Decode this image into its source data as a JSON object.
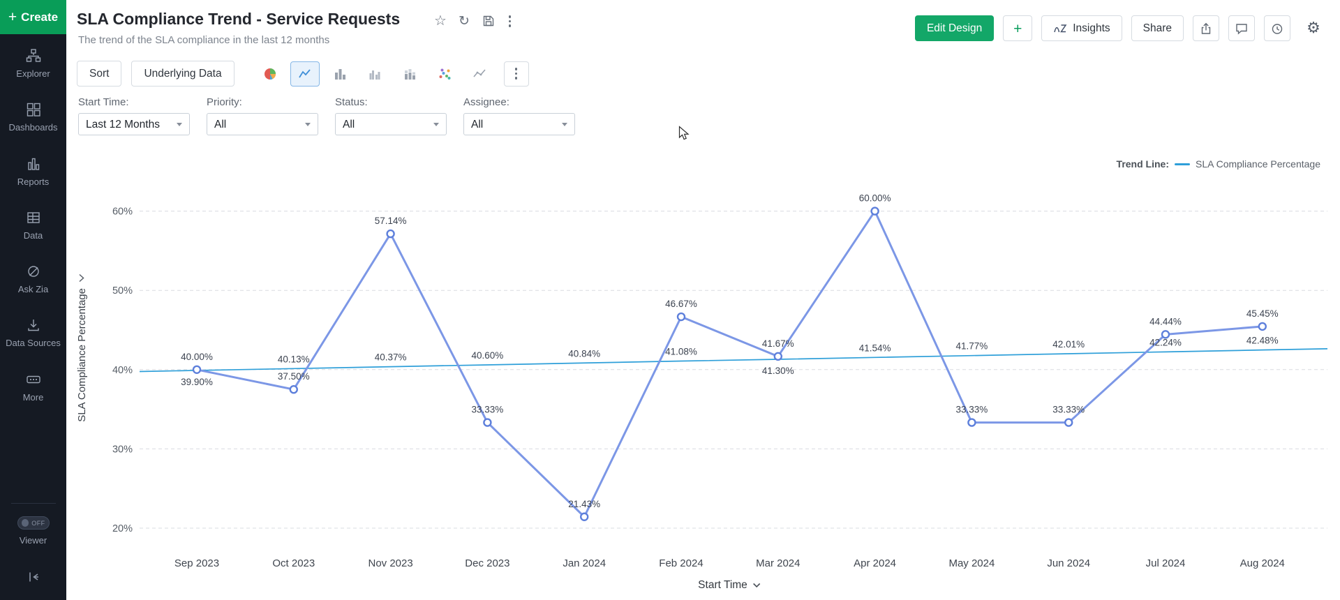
{
  "sidebar": {
    "create": "Create",
    "items": [
      {
        "id": "explorer",
        "label": "Explorer"
      },
      {
        "id": "dashboards",
        "label": "Dashboards"
      },
      {
        "id": "reports",
        "label": "Reports"
      },
      {
        "id": "data",
        "label": "Data"
      },
      {
        "id": "ask-zia",
        "label": "Ask Zia"
      },
      {
        "id": "data-sources",
        "label": "Data Sources"
      },
      {
        "id": "more",
        "label": "More"
      }
    ],
    "viewer_label": "Viewer",
    "viewer_toggle": "OFF"
  },
  "header": {
    "title": "SLA Compliance Trend - Service Requests",
    "subtitle": "The trend of the SLA compliance in the last 12 months",
    "edit_design": "Edit Design",
    "insights": "Insights",
    "share": "Share"
  },
  "toolbar": {
    "sort": "Sort",
    "underlying_data": "Underlying Data"
  },
  "filters": {
    "start_time": {
      "label": "Start Time:",
      "value": "Last 12 Months"
    },
    "priority": {
      "label": "Priority:",
      "value": "All"
    },
    "status": {
      "label": "Status:",
      "value": "All"
    },
    "assignee": {
      "label": "Assignee:",
      "value": "All"
    }
  },
  "legend": {
    "title": "Trend Line:",
    "series": "SLA Compliance Percentage"
  },
  "colors": {
    "accent_green": "#099d58",
    "edit_design_green": "#13a768",
    "main_line": "#7c97e6",
    "trend_line": "#2e9fd9"
  },
  "chart_data": {
    "type": "line",
    "categories": [
      "Sep 2023",
      "Oct 2023",
      "Nov 2023",
      "Dec 2023",
      "Jan 2024",
      "Feb 2024",
      "Mar 2024",
      "Apr 2024",
      "May 2024",
      "Jun 2024",
      "Jul 2024",
      "Aug 2024"
    ],
    "series": [
      {
        "name": "SLA Compliance Percentage",
        "role": "measure",
        "color": "#7c97e6",
        "values": [
          40.0,
          37.5,
          57.14,
          33.33,
          21.43,
          46.67,
          41.67,
          60.0,
          33.33,
          33.33,
          44.44,
          45.45
        ]
      },
      {
        "name": "Trend Line",
        "role": "trend",
        "color": "#2e9fd9",
        "values": [
          39.9,
          40.13,
          40.37,
          40.6,
          40.84,
          41.08,
          41.3,
          41.54,
          41.77,
          42.01,
          42.24,
          42.48
        ]
      }
    ],
    "xlabel": "Start Time",
    "ylabel": "SLA Compliance Percentage",
    "yticks": [
      20,
      30,
      40,
      50,
      60
    ],
    "ytick_suffix": "%",
    "ylim": [
      20,
      63
    ],
    "grid": true,
    "legend_position": "top-right",
    "trend_labels_below_indices": [
      0,
      6
    ]
  }
}
